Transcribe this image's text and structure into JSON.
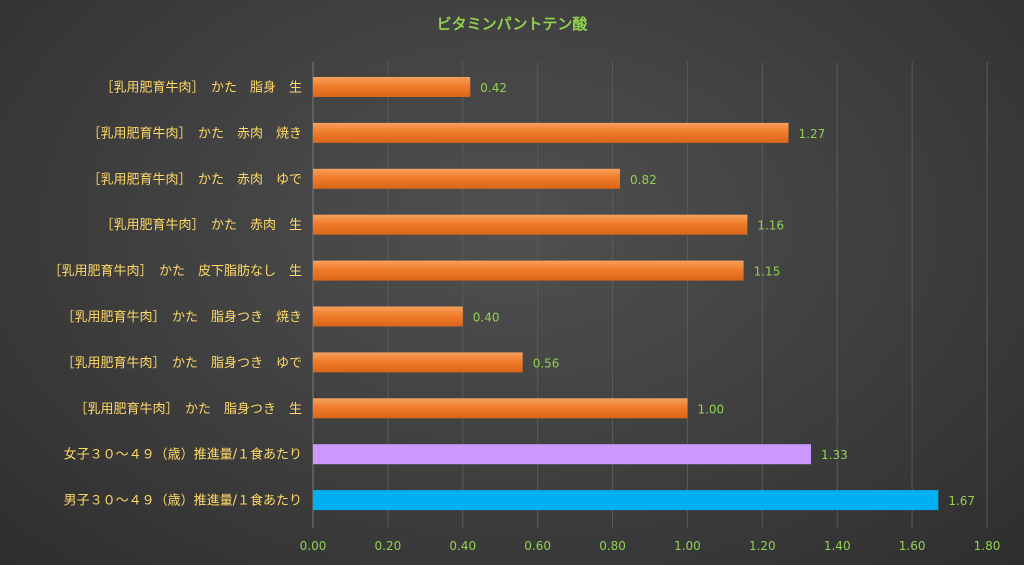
{
  "chart_data": {
    "type": "bar",
    "orientation": "horizontal",
    "title": "ビタミンパントテン酸",
    "categories": [
      "［乳用肥育牛肉］　かた　脂身　生",
      "［乳用肥育牛肉］　かた　赤肉　焼き",
      "［乳用肥育牛肉］　かた　赤肉　ゆで",
      "［乳用肥育牛肉］　かた　赤肉　生",
      "［乳用肥育牛肉］　かた　皮下脂肪なし　生",
      "［乳用肥育牛肉］　かた　脂身つき　焼き",
      "［乳用肥育牛肉］　かた　脂身つき　ゆで",
      "［乳用肥育牛肉］　かた　脂身つき　生",
      "女子３０～４９（歳）推進量/１食あたり",
      "男子３０～４９（歳）推進量/１食あたり"
    ],
    "values": [
      0.42,
      1.27,
      0.82,
      1.16,
      1.15,
      0.4,
      0.56,
      1.0,
      1.33,
      1.67
    ],
    "value_labels": [
      "0.42",
      "1.27",
      "0.82",
      "1.16",
      "1.15",
      "0.40",
      "0.56",
      "1.00",
      "1.33",
      "1.67"
    ],
    "xlim": [
      0,
      1.8
    ],
    "xticks": [
      "0.00",
      "0.20",
      "0.40",
      "0.60",
      "0.80",
      "1.00",
      "1.20",
      "1.40",
      "1.60",
      "1.80"
    ],
    "grid": true,
    "legend": "none",
    "colors": {
      "bar_default": "#f07c2a",
      "bar_female": "#cc99ff",
      "bar_male": "#00b0f0",
      "text_title": "#92d050",
      "text_category": "#ffd966",
      "text_ticks": "#92d050"
    }
  }
}
